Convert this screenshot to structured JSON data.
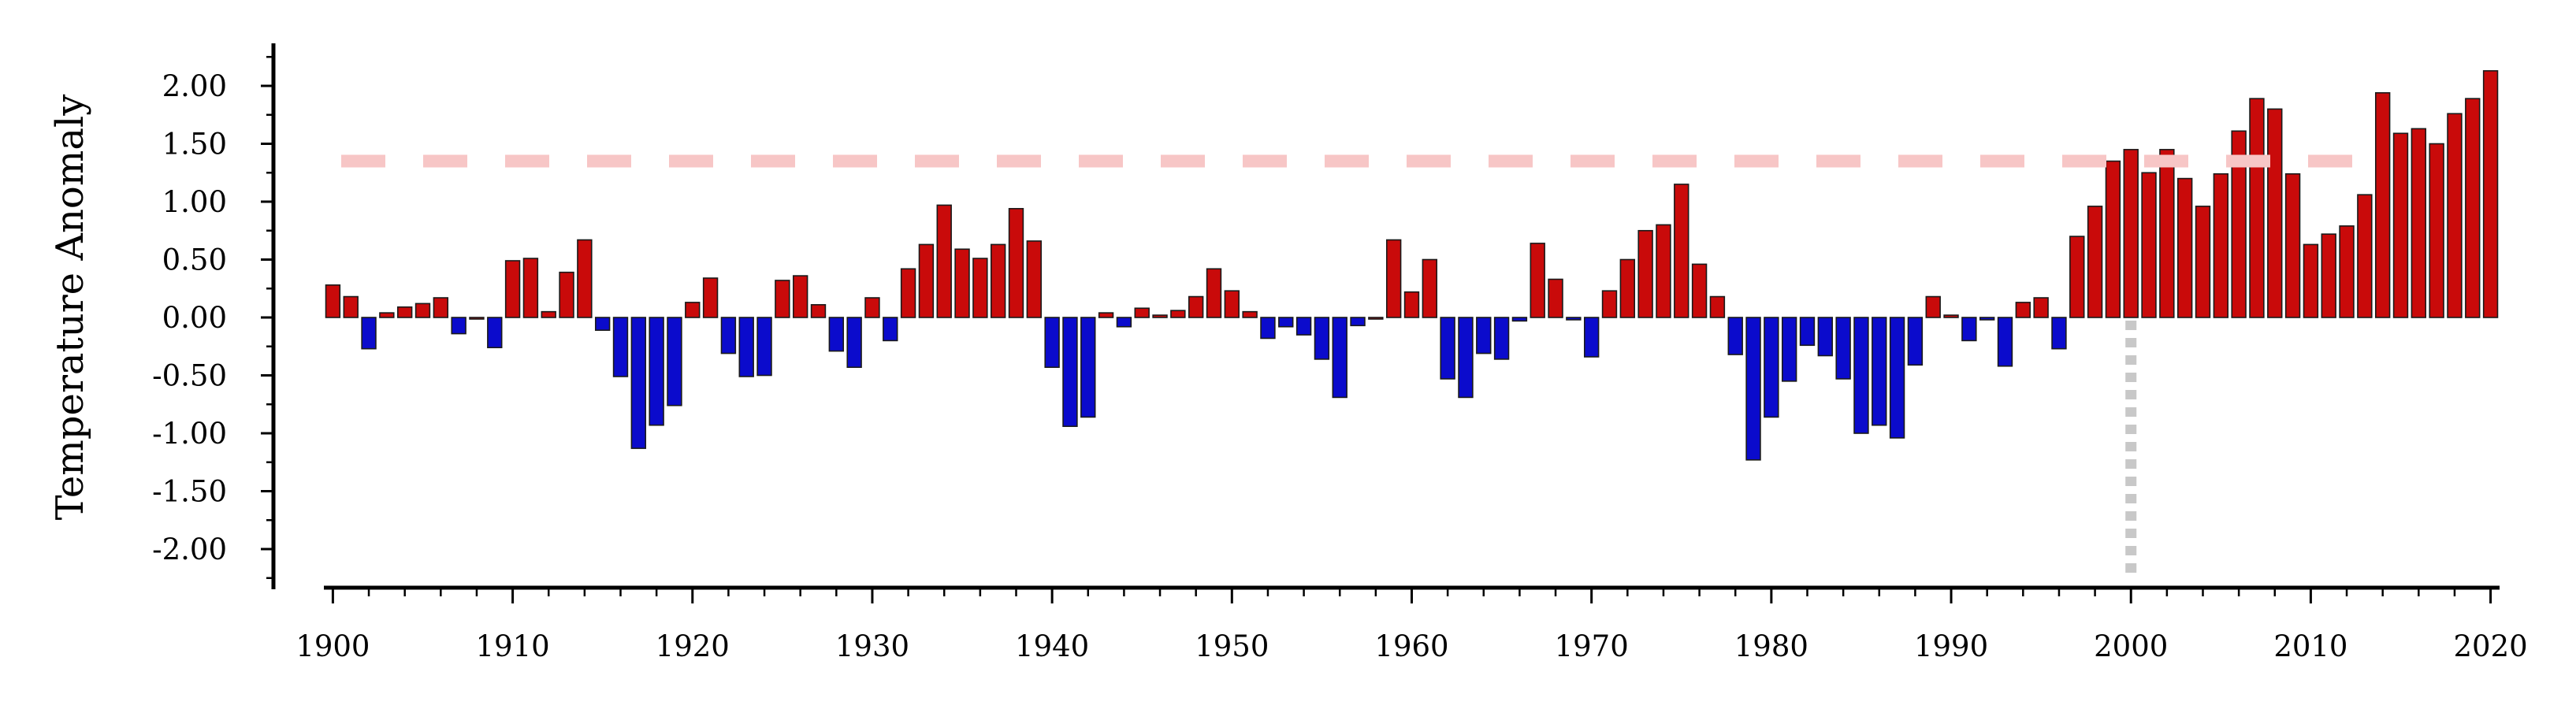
{
  "chart_data": {
    "type": "bar",
    "title": "",
    "xlabel": "",
    "ylabel": "Temperature Anomaly",
    "x": [
      1900,
      1901,
      1902,
      1903,
      1904,
      1905,
      1906,
      1907,
      1908,
      1909,
      1910,
      1911,
      1912,
      1913,
      1914,
      1915,
      1916,
      1917,
      1918,
      1919,
      1920,
      1921,
      1922,
      1923,
      1924,
      1925,
      1926,
      1927,
      1928,
      1929,
      1930,
      1931,
      1932,
      1933,
      1934,
      1935,
      1936,
      1937,
      1938,
      1939,
      1940,
      1941,
      1942,
      1943,
      1944,
      1945,
      1946,
      1947,
      1948,
      1949,
      1950,
      1951,
      1952,
      1953,
      1954,
      1955,
      1956,
      1957,
      1958,
      1959,
      1960,
      1961,
      1962,
      1963,
      1964,
      1965,
      1966,
      1967,
      1968,
      1969,
      1970,
      1971,
      1972,
      1973,
      1974,
      1975,
      1976,
      1977,
      1978,
      1979,
      1980,
      1981,
      1982,
      1983,
      1984,
      1985,
      1986,
      1987,
      1988,
      1989,
      1990,
      1991,
      1992,
      1993,
      1994,
      1995,
      1996,
      1997,
      1998,
      1999,
      2000,
      2001,
      2002,
      2003,
      2004,
      2005,
      2006,
      2007,
      2008,
      2009,
      2010,
      2011,
      2012,
      2013,
      2014,
      2015,
      2016,
      2017,
      2018,
      2019,
      2020
    ],
    "values": [
      0.28,
      0.18,
      -0.27,
      0.04,
      0.09,
      0.12,
      0.17,
      -0.14,
      0.0,
      -0.26,
      0.49,
      0.51,
      0.05,
      0.39,
      0.67,
      -0.11,
      -0.51,
      -1.13,
      -0.93,
      -0.76,
      0.13,
      0.34,
      -0.31,
      -0.51,
      -0.5,
      0.32,
      0.36,
      0.11,
      -0.29,
      -0.43,
      0.17,
      -0.2,
      0.42,
      0.63,
      0.97,
      0.59,
      0.51,
      0.63,
      0.94,
      0.66,
      -0.43,
      -0.94,
      -0.86,
      0.04,
      -0.08,
      0.08,
      0.02,
      0.06,
      0.18,
      0.42,
      0.23,
      0.05,
      -0.18,
      -0.08,
      -0.15,
      -0.36,
      -0.69,
      -0.07,
      0.0,
      0.67,
      0.22,
      0.5,
      -0.53,
      -0.69,
      -0.31,
      -0.36,
      -0.03,
      0.64,
      0.33,
      -0.02,
      -0.34,
      0.23,
      0.5,
      0.75,
      0.8,
      1.15,
      0.46,
      0.18,
      -0.32,
      -1.23,
      -0.86,
      -0.55,
      -0.24,
      -0.33,
      -0.53,
      -1.0,
      -0.93,
      -1.04,
      -0.41,
      0.18,
      0.02,
      -0.2,
      -0.02,
      -0.42,
      0.13,
      0.17,
      -0.27,
      0.7,
      0.96,
      1.35,
      1.45,
      1.25,
      1.45,
      1.2,
      0.96,
      1.24,
      1.61,
      1.89,
      1.8,
      1.24,
      0.63,
      0.72,
      0.79,
      1.06,
      1.94,
      1.59,
      1.63,
      1.5,
      1.76,
      1.89,
      2.13
    ],
    "ylim": [
      -2.35,
      2.35
    ],
    "xlim": [
      1899.5,
      2020.5
    ],
    "y_ticks": [
      "2.00",
      "1.50",
      "1.00",
      "0.50",
      "0.00",
      "-0.50",
      "-1.00",
      "-1.50",
      "-2.00"
    ],
    "y_tick_values": [
      2.0,
      1.5,
      1.0,
      0.5,
      0.0,
      -0.5,
      -1.0,
      -1.5,
      -2.0
    ],
    "x_ticks": [
      "1900",
      "1910",
      "1920",
      "1930",
      "1940",
      "1950",
      "1960",
      "1970",
      "1980",
      "1990",
      "2000",
      "2010",
      "2020"
    ],
    "x_tick_values": [
      1900,
      1910,
      1920,
      1930,
      1940,
      1950,
      1960,
      1970,
      1980,
      1990,
      2000,
      2010,
      2020
    ],
    "reference_line": {
      "y": 1.35,
      "style": "dashed",
      "color": "#f7c6c6"
    },
    "marker_line": {
      "x": 2000,
      "y_from": 0.0,
      "y_to": -2.2,
      "style": "dotted",
      "color": "#c8c8c8"
    },
    "colors": {
      "positive": "#c90a0a",
      "negative": "#0b0bcc",
      "bar_edge": "#1a1a1a"
    },
    "grid": false,
    "legend": "none"
  }
}
